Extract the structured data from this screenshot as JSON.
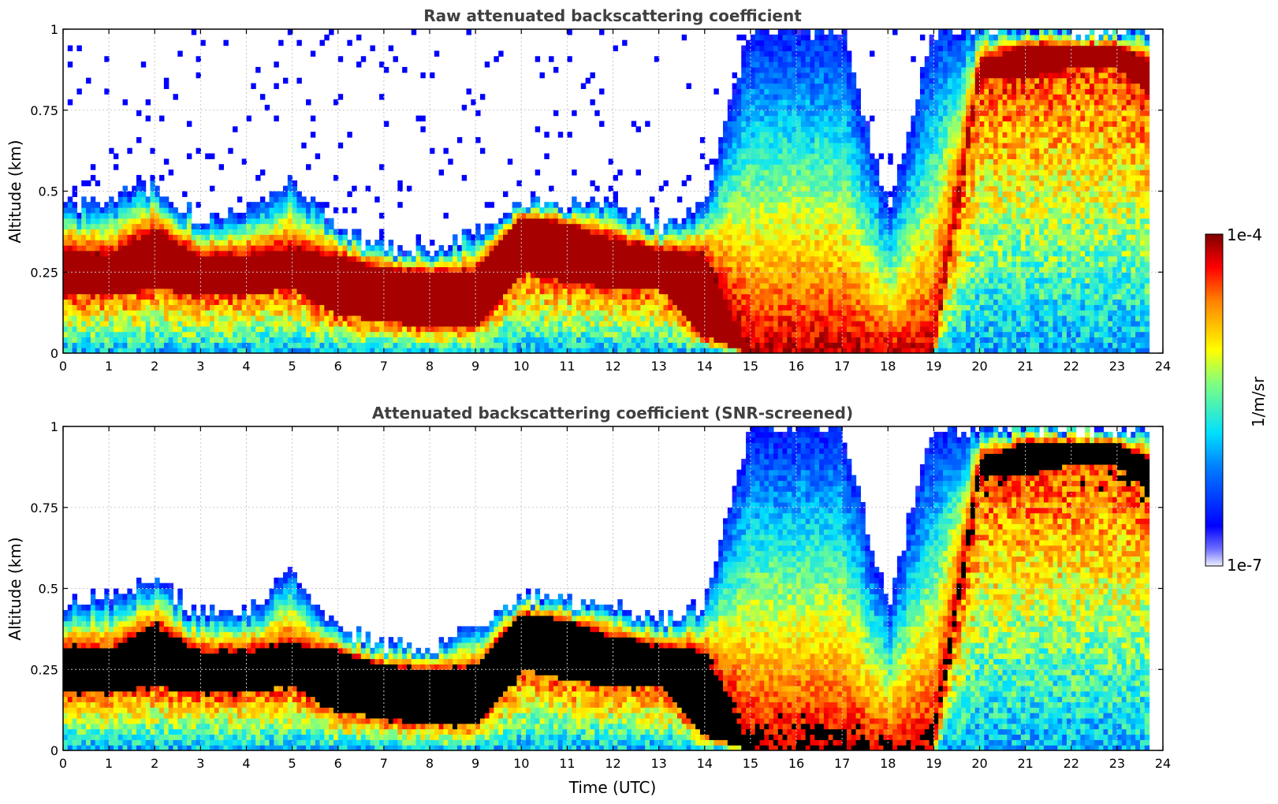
{
  "chart_data": [
    {
      "type": "heatmap",
      "title": "Raw attenuated backscattering coefficient",
      "xlabel": "",
      "ylabel": "Altitude (km)",
      "xlim": [
        0,
        24
      ],
      "ylim": [
        0,
        1
      ],
      "xticks": [
        "0",
        "1",
        "2",
        "3",
        "4",
        "5",
        "6",
        "7",
        "8",
        "9",
        "10",
        "11",
        "12",
        "13",
        "14",
        "15",
        "16",
        "17",
        "18",
        "19",
        "20",
        "21",
        "22",
        "23",
        "24"
      ],
      "yticks": [
        "0",
        "0.25",
        "0.5",
        "0.75",
        "1"
      ],
      "ytick_values": [
        0,
        0.25,
        0.5,
        0.75,
        1
      ],
      "grid": true,
      "screened": false,
      "layer": {
        "time": [
          0,
          1,
          2,
          3,
          4,
          5,
          6,
          7,
          8,
          9,
          10,
          11,
          12,
          13,
          14,
          15,
          16,
          17,
          18,
          19,
          20,
          21,
          22,
          23,
          23.7
        ],
        "top_km": [
          0.45,
          0.48,
          0.52,
          0.42,
          0.44,
          0.55,
          0.38,
          0.33,
          0.32,
          0.38,
          0.48,
          0.46,
          0.45,
          0.4,
          0.46,
          1.0,
          1.0,
          1.0,
          0.45,
          1.0,
          1.0,
          1.0,
          1.0,
          1.0,
          1.0
        ],
        "core_top_km": [
          0.32,
          0.3,
          0.38,
          0.3,
          0.3,
          0.32,
          0.3,
          0.26,
          0.25,
          0.25,
          0.42,
          0.4,
          0.35,
          0.32,
          0.3,
          0.0,
          0.0,
          0.0,
          0.0,
          0.0,
          0.9,
          0.95,
          0.95,
          0.95,
          0.9
        ],
        "core_bottom_km": [
          0.18,
          0.18,
          0.2,
          0.18,
          0.18,
          0.2,
          0.12,
          0.1,
          0.08,
          0.08,
          0.25,
          0.22,
          0.2,
          0.2,
          0.05,
          0.0,
          0.0,
          0.0,
          0.0,
          0.0,
          0.85,
          0.85,
          0.88,
          0.88,
          0.8
        ]
      }
    },
    {
      "type": "heatmap",
      "title": "Attenuated backscattering coefficient (SNR-screened)",
      "xlabel": "Time (UTC)",
      "ylabel": "Altitude (km)",
      "xlim": [
        0,
        24
      ],
      "ylim": [
        0,
        1
      ],
      "xticks": [
        "0",
        "1",
        "2",
        "3",
        "4",
        "5",
        "6",
        "7",
        "8",
        "9",
        "10",
        "11",
        "12",
        "13",
        "14",
        "15",
        "16",
        "17",
        "18",
        "19",
        "20",
        "21",
        "22",
        "23",
        "24"
      ],
      "yticks": [
        "0",
        "0.25",
        "0.5",
        "0.75",
        "1"
      ],
      "ytick_values": [
        0,
        0.25,
        0.5,
        0.75,
        1
      ],
      "grid": true,
      "screened": true,
      "saturated_color": "#000000"
    }
  ],
  "colorbar": {
    "label": "1/m/sr",
    "max_label": "1e-4",
    "min_label": "1e-7",
    "scale": "log",
    "range": [
      1e-07,
      0.0001
    ],
    "colormap": "jet"
  }
}
